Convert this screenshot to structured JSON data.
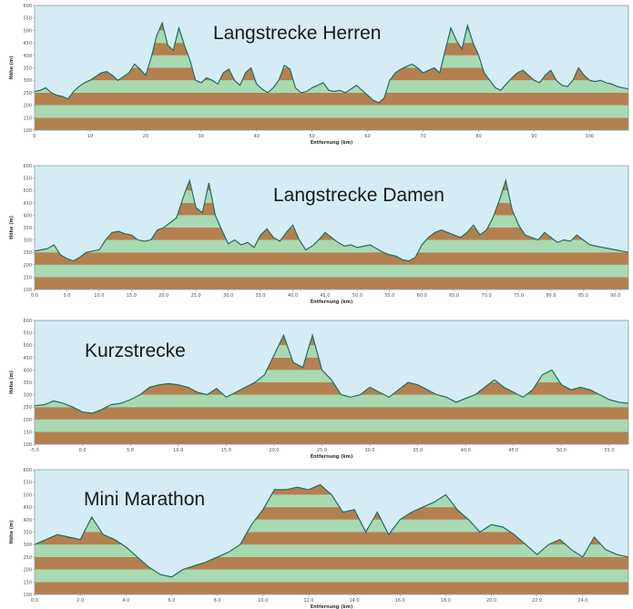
{
  "colors": {
    "plot_bg": "#d6ecf4",
    "band_green": "#a9d9b1",
    "band_brown": "#b48050",
    "profile_line": "#1c6e66",
    "frame": "#8a9aa0"
  },
  "chart_data": [
    {
      "type": "area",
      "title": "Langstrecke Herren",
      "xlabel": "Entfernung (km)",
      "ylabel": "Höhe (m)",
      "xlim": [
        0,
        107
      ],
      "ylim": [
        100,
        600
      ],
      "xticks": [
        "0",
        "10",
        "20",
        "30",
        "40",
        "50",
        "60",
        "70",
        "80",
        "90",
        "100"
      ],
      "yticks": [
        "100",
        "150",
        "200",
        "250",
        "300",
        "350",
        "400",
        "450",
        "500",
        "550",
        "600"
      ],
      "bands": [
        100,
        150,
        200,
        250,
        300,
        350,
        400,
        450,
        500,
        550,
        600
      ],
      "series": [
        {
          "x": [
            0,
            1,
            2,
            3,
            4,
            5,
            6,
            7,
            8,
            9,
            10,
            11,
            12,
            13,
            14,
            15,
            16,
            17,
            18,
            19,
            20,
            21,
            22,
            23,
            24,
            25,
            26,
            27,
            28,
            29,
            30,
            31,
            32,
            33,
            34,
            35,
            36,
            37,
            38,
            39,
            40,
            41,
            42,
            43,
            44,
            45,
            46,
            47,
            48,
            49,
            50,
            51,
            52,
            53,
            54,
            55,
            56,
            57,
            58,
            59,
            60,
            61,
            62,
            63,
            64,
            65,
            66,
            67,
            68,
            69,
            70,
            71,
            72,
            73,
            74,
            75,
            76,
            77,
            78,
            79,
            80,
            81,
            82,
            83,
            84,
            85,
            86,
            87,
            88,
            89,
            90,
            91,
            92,
            93,
            94,
            95,
            96,
            97,
            98,
            99,
            100,
            101,
            102,
            103,
            104,
            105,
            106,
            107
          ],
          "y": [
            255,
            260,
            270,
            250,
            240,
            235,
            225,
            255,
            275,
            290,
            300,
            315,
            330,
            335,
            320,
            300,
            315,
            330,
            365,
            345,
            320,
            390,
            480,
            530,
            440,
            420,
            510,
            440,
            380,
            300,
            290,
            310,
            300,
            285,
            330,
            345,
            300,
            280,
            330,
            350,
            285,
            265,
            250,
            270,
            300,
            360,
            345,
            270,
            250,
            255,
            270,
            280,
            290,
            260,
            255,
            260,
            250,
            265,
            280,
            260,
            240,
            220,
            210,
            230,
            300,
            330,
            345,
            355,
            365,
            350,
            330,
            340,
            350,
            330,
            420,
            510,
            460,
            425,
            520,
            450,
            400,
            330,
            300,
            270,
            260,
            285,
            310,
            330,
            340,
            320,
            300,
            290,
            320,
            340,
            300,
            280,
            275,
            300,
            350,
            320,
            300,
            295,
            300,
            290,
            285,
            275,
            270,
            265
          ]
        }
      ]
    },
    {
      "type": "area",
      "title": "Langstrecke Damen",
      "xlabel": "Entfernung (km)",
      "ylabel": "Höhe (m)",
      "xlim": [
        0,
        92
      ],
      "ylim": [
        100,
        600
      ],
      "xticks": [
        "0.0",
        "5.0",
        "10.0",
        "15.0",
        "20.0",
        "25.0",
        "30.0",
        "35.0",
        "40.0",
        "45.0",
        "50.0",
        "55.0",
        "60.0",
        "65.0",
        "70.0",
        "75.0",
        "80.0",
        "85.0",
        "90.0"
      ],
      "yticks": [
        "100",
        "150",
        "200",
        "250",
        "300",
        "350",
        "400",
        "450",
        "500",
        "550",
        "600"
      ],
      "bands": [
        100,
        150,
        200,
        250,
        300,
        350,
        400,
        450,
        500,
        550,
        600
      ],
      "series": [
        {
          "x": [
            0,
            1,
            2,
            3,
            4,
            5,
            6,
            7,
            8,
            9,
            10,
            11,
            12,
            13,
            14,
            15,
            16,
            17,
            18,
            19,
            20,
            21,
            22,
            23,
            24,
            25,
            26,
            27,
            28,
            29,
            30,
            31,
            32,
            33,
            34,
            35,
            36,
            37,
            38,
            39,
            40,
            41,
            42,
            43,
            44,
            45,
            46,
            47,
            48,
            49,
            50,
            51,
            52,
            53,
            54,
            55,
            56,
            57,
            58,
            59,
            60,
            61,
            62,
            63,
            64,
            65,
            66,
            67,
            68,
            69,
            70,
            71,
            72,
            73,
            74,
            75,
            76,
            77,
            78,
            79,
            80,
            81,
            82,
            83,
            84,
            85,
            86,
            87,
            88,
            89,
            90,
            91,
            92
          ],
          "y": [
            255,
            260,
            265,
            280,
            240,
            225,
            215,
            230,
            250,
            255,
            260,
            300,
            330,
            335,
            325,
            320,
            300,
            295,
            300,
            340,
            350,
            370,
            390,
            470,
            540,
            430,
            410,
            530,
            400,
            340,
            285,
            300,
            280,
            290,
            270,
            320,
            345,
            310,
            295,
            330,
            360,
            300,
            260,
            275,
            300,
            330,
            310,
            290,
            275,
            280,
            270,
            275,
            280,
            265,
            250,
            240,
            235,
            220,
            215,
            230,
            280,
            310,
            330,
            340,
            330,
            320,
            310,
            330,
            360,
            320,
            340,
            390,
            460,
            540,
            420,
            360,
            320,
            310,
            300,
            330,
            310,
            290,
            300,
            295,
            320,
            300,
            280,
            275,
            270,
            265,
            260,
            255,
            250
          ]
        }
      ]
    },
    {
      "type": "area",
      "title": "Kurzstrecke",
      "xlabel": "Entfernung (km)",
      "ylabel": "Höhe (m)",
      "xlim": [
        -5,
        57
      ],
      "ylim": [
        100,
        600
      ],
      "xticks": [
        "-5.0",
        "0.0",
        "5.0",
        "10.0",
        "15.0",
        "20.0",
        "25.0",
        "30.0",
        "35.0",
        "40.0",
        "45.0",
        "50.0",
        "55.0"
      ],
      "yticks": [
        "100",
        "150",
        "200",
        "250",
        "300",
        "350",
        "400",
        "450",
        "500",
        "550",
        "600"
      ],
      "bands": [
        100,
        150,
        200,
        250,
        300,
        350,
        400,
        450,
        500,
        550,
        600
      ],
      "series": [
        {
          "x": [
            -5,
            -4,
            -3,
            -2,
            -1,
            0,
            1,
            2,
            3,
            4,
            5,
            6,
            7,
            8,
            9,
            10,
            11,
            12,
            13,
            14,
            15,
            16,
            17,
            18,
            19,
            20,
            21,
            22,
            23,
            24,
            25,
            26,
            27,
            28,
            29,
            30,
            31,
            32,
            33,
            34,
            35,
            36,
            37,
            38,
            39,
            40,
            41,
            42,
            43,
            44,
            45,
            46,
            47,
            48,
            49,
            50,
            51,
            52,
            53,
            54,
            55,
            56,
            57
          ],
          "y": [
            255,
            260,
            275,
            265,
            250,
            230,
            225,
            240,
            260,
            265,
            280,
            300,
            330,
            340,
            345,
            340,
            330,
            310,
            300,
            325,
            290,
            310,
            330,
            350,
            380,
            460,
            540,
            430,
            410,
            540,
            400,
            360,
            300,
            290,
            300,
            330,
            310,
            290,
            320,
            350,
            340,
            320,
            300,
            290,
            270,
            285,
            300,
            330,
            360,
            330,
            310,
            290,
            320,
            380,
            400,
            340,
            320,
            330,
            320,
            300,
            280,
            270,
            265
          ]
        }
      ]
    },
    {
      "type": "area",
      "title": "Mini Marathon",
      "xlabel": "Entfernung (km)",
      "ylabel": "Höhe (m)",
      "xlim": [
        0,
        26
      ],
      "ylim": [
        100,
        600
      ],
      "xticks": [
        "0.0",
        "2.0",
        "4.0",
        "6.0",
        "8.0",
        "10.0",
        "12.0",
        "14.0",
        "16.0",
        "18.0",
        "20.0",
        "22.0",
        "24.0"
      ],
      "yticks": [
        "100",
        "150",
        "200",
        "250",
        "300",
        "350",
        "400",
        "450",
        "500",
        "550",
        "600"
      ],
      "bands": [
        100,
        150,
        200,
        250,
        300,
        350,
        400,
        450,
        500,
        550,
        600
      ],
      "series": [
        {
          "x": [
            0,
            0.5,
            1,
            1.5,
            2,
            2.5,
            3,
            3.5,
            4,
            4.5,
            5,
            5.5,
            6,
            6.5,
            7,
            7.5,
            8,
            8.5,
            9,
            9.5,
            10,
            10.5,
            11,
            11.5,
            12,
            12.5,
            13,
            13.5,
            14,
            14.5,
            15,
            15.5,
            16,
            16.5,
            17,
            17.5,
            18,
            18.5,
            19,
            19.5,
            20,
            20.5,
            21,
            21.5,
            22,
            22.5,
            23,
            23.5,
            24,
            24.5,
            25,
            25.5,
            26
          ],
          "y": [
            300,
            320,
            340,
            330,
            320,
            410,
            340,
            320,
            290,
            250,
            210,
            180,
            170,
            200,
            215,
            230,
            250,
            270,
            300,
            380,
            440,
            520,
            520,
            530,
            520,
            540,
            500,
            430,
            440,
            350,
            430,
            340,
            400,
            430,
            450,
            470,
            500,
            440,
            400,
            350,
            380,
            370,
            340,
            300,
            260,
            300,
            320,
            280,
            250,
            330,
            280,
            260,
            250
          ]
        }
      ]
    }
  ]
}
